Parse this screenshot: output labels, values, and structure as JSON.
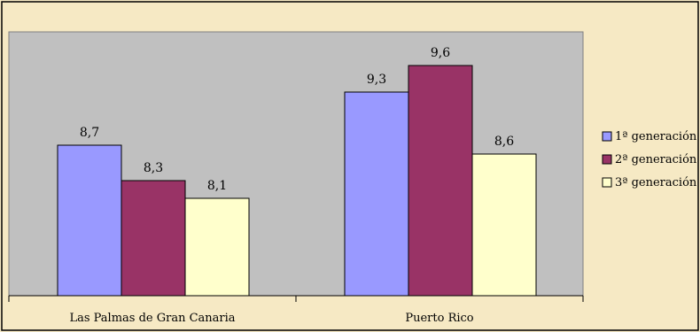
{
  "chart_data": {
    "type": "bar",
    "categories": [
      "Las Palmas de Gran Canaria",
      "Puerto Rico"
    ],
    "series": [
      {
        "name": "1ª generación",
        "values": [
          8.7,
          9.3
        ],
        "color": "#9999ff"
      },
      {
        "name": "2ª generación",
        "values": [
          8.3,
          9.6
        ],
        "color": "#993366"
      },
      {
        "name": "3ª generación",
        "values": [
          8.1,
          8.6
        ],
        "color": "#ffffcc"
      }
    ],
    "value_labels": [
      [
        "8,7",
        "9,3"
      ],
      [
        "8,3",
        "9,6"
      ],
      [
        "8,1",
        "8,6"
      ]
    ],
    "title": "",
    "xlabel": "",
    "ylabel": "",
    "ylim": [
      7,
      10
    ],
    "grid": false,
    "legend_position": "right",
    "plot_background": "#c0c0c0"
  }
}
